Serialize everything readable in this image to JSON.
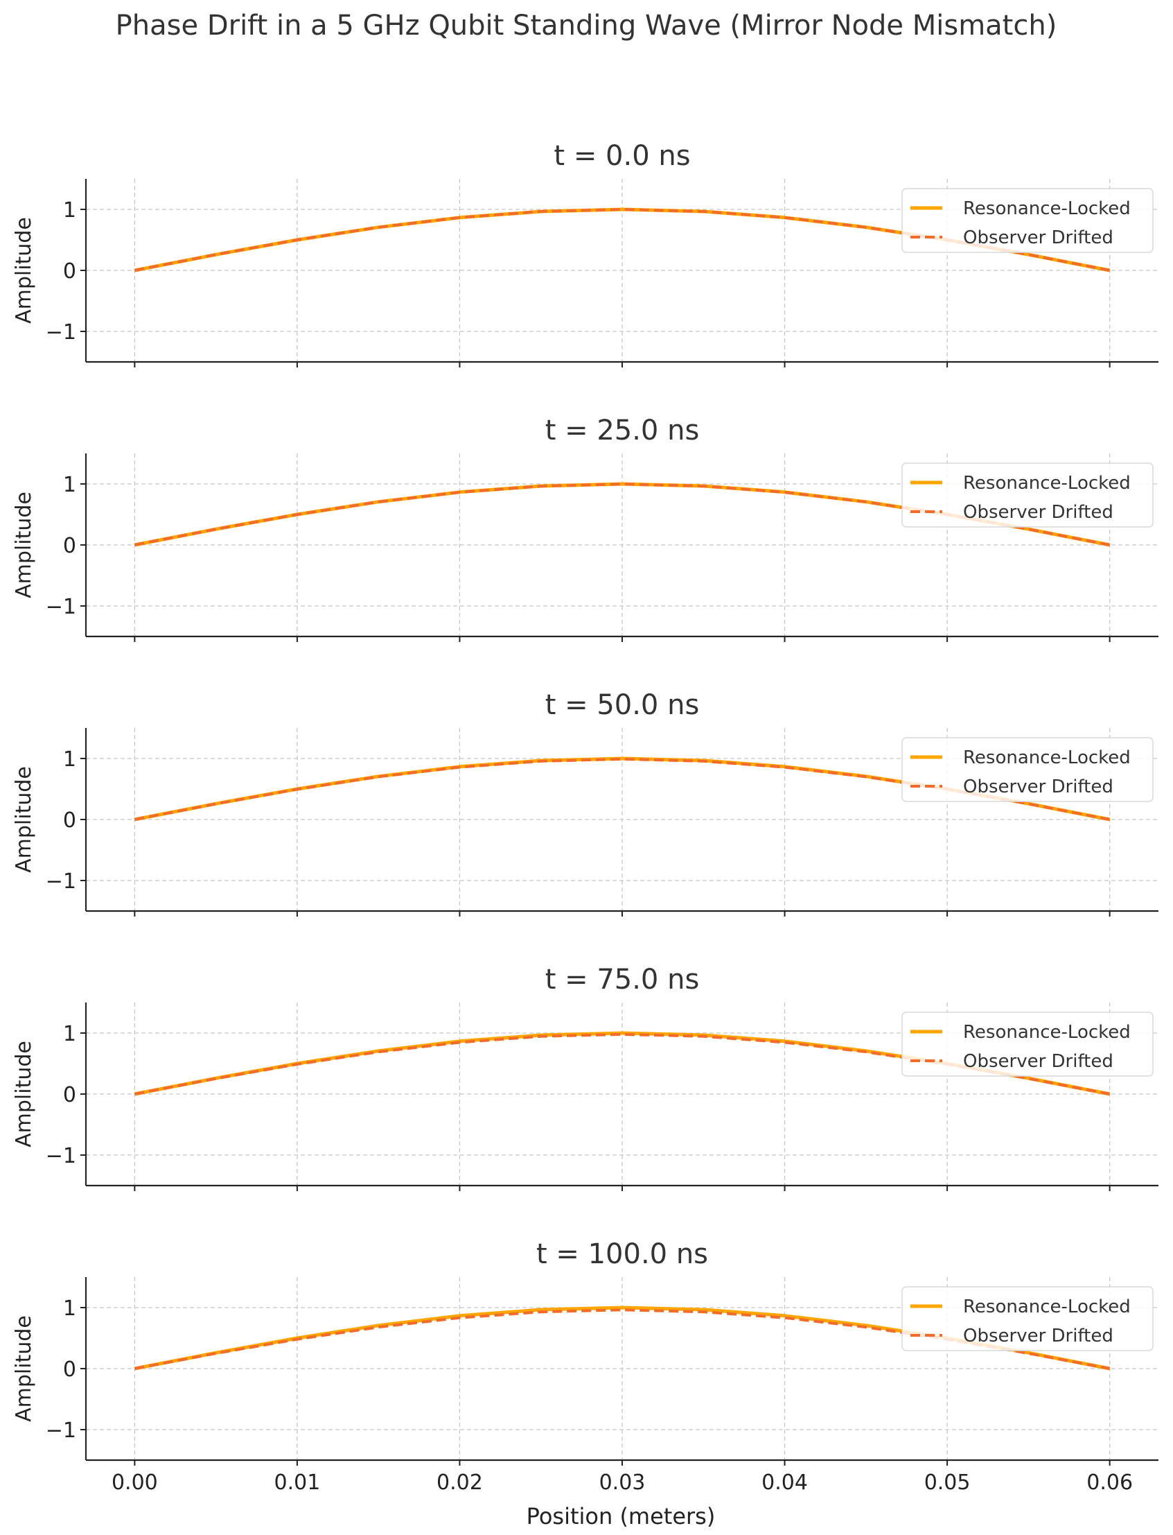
{
  "figure": {
    "suptitle": "Phase Drift in a 5 GHz Qubit Standing Wave (Mirror Node Mismatch)",
    "xlabel": "Position (meters)",
    "ylabel": "Amplitude"
  },
  "colors": {
    "locked": "#FFA500",
    "drifted": "#F26B2A",
    "grid": "#c8c8c8",
    "axis": "#222222"
  },
  "chart_data": [
    {
      "type": "line",
      "title": "t = 0.0 ns",
      "xlim": [
        -0.003,
        0.063
      ],
      "ylim": [
        -1.5,
        1.5
      ],
      "xticks": [
        0.0,
        0.01,
        0.02,
        0.03,
        0.04,
        0.05,
        0.06
      ],
      "xtick_labels": [
        "0.00",
        "0.01",
        "0.02",
        "0.03",
        "0.04",
        "0.05",
        "0.06"
      ],
      "yticks": [
        1,
        0,
        -1
      ],
      "ytick_labels": [
        "1",
        "0",
        "−1"
      ],
      "grid": true,
      "legend": "upper right",
      "x": [
        0.0,
        0.005,
        0.01,
        0.015,
        0.02,
        0.025,
        0.03,
        0.035,
        0.04,
        0.045,
        0.05,
        0.055,
        0.06
      ],
      "series": [
        {
          "name": "Resonance-Locked",
          "style": "solid",
          "values": [
            0.0,
            0.259,
            0.5,
            0.707,
            0.866,
            0.966,
            1.0,
            0.966,
            0.866,
            0.707,
            0.5,
            0.259,
            0.0
          ]
        },
        {
          "name": "Observer Drifted",
          "style": "dashed",
          "values": [
            0.0,
            0.259,
            0.5,
            0.707,
            0.866,
            0.966,
            1.0,
            0.966,
            0.866,
            0.707,
            0.5,
            0.259,
            0.0
          ]
        }
      ]
    },
    {
      "type": "line",
      "title": "t = 25.0 ns",
      "xlim": [
        -0.003,
        0.063
      ],
      "ylim": [
        -1.5,
        1.5
      ],
      "xticks": [
        0.0,
        0.01,
        0.02,
        0.03,
        0.04,
        0.05,
        0.06
      ],
      "xtick_labels": [
        "0.00",
        "0.01",
        "0.02",
        "0.03",
        "0.04",
        "0.05",
        "0.06"
      ],
      "yticks": [
        1,
        0,
        -1
      ],
      "ytick_labels": [
        "1",
        "0",
        "−1"
      ],
      "grid": true,
      "legend": "upper right",
      "x": [
        0.0,
        0.005,
        0.01,
        0.015,
        0.02,
        0.025,
        0.03,
        0.035,
        0.04,
        0.045,
        0.05,
        0.055,
        0.06
      ],
      "series": [
        {
          "name": "Resonance-Locked",
          "style": "solid",
          "values": [
            0.0,
            0.259,
            0.5,
            0.707,
            0.866,
            0.966,
            1.0,
            0.966,
            0.866,
            0.707,
            0.5,
            0.259,
            0.0
          ]
        },
        {
          "name": "Observer Drifted",
          "style": "dashed",
          "values": [
            0.0,
            0.258,
            0.499,
            0.706,
            0.864,
            0.964,
            0.998,
            0.964,
            0.864,
            0.706,
            0.499,
            0.258,
            0.0
          ]
        }
      ]
    },
    {
      "type": "line",
      "title": "t = 50.0 ns",
      "xlim": [
        -0.003,
        0.063
      ],
      "ylim": [
        -1.5,
        1.5
      ],
      "xticks": [
        0.0,
        0.01,
        0.02,
        0.03,
        0.04,
        0.05,
        0.06
      ],
      "xtick_labels": [
        "0.00",
        "0.01",
        "0.02",
        "0.03",
        "0.04",
        "0.05",
        "0.06"
      ],
      "yticks": [
        1,
        0,
        -1
      ],
      "ytick_labels": [
        "1",
        "0",
        "−1"
      ],
      "grid": true,
      "legend": "upper right",
      "x": [
        0.0,
        0.005,
        0.01,
        0.015,
        0.02,
        0.025,
        0.03,
        0.035,
        0.04,
        0.045,
        0.05,
        0.055,
        0.06
      ],
      "series": [
        {
          "name": "Resonance-Locked",
          "style": "solid",
          "values": [
            0.0,
            0.259,
            0.5,
            0.707,
            0.866,
            0.966,
            1.0,
            0.966,
            0.866,
            0.707,
            0.5,
            0.259,
            0.0
          ]
        },
        {
          "name": "Observer Drifted",
          "style": "dashed",
          "values": [
            0.0,
            0.256,
            0.495,
            0.7,
            0.857,
            0.956,
            0.99,
            0.956,
            0.857,
            0.7,
            0.495,
            0.256,
            0.0
          ]
        }
      ]
    },
    {
      "type": "line",
      "title": "t = 75.0 ns",
      "xlim": [
        -0.003,
        0.063
      ],
      "ylim": [
        -1.5,
        1.5
      ],
      "xticks": [
        0.0,
        0.01,
        0.02,
        0.03,
        0.04,
        0.05,
        0.06
      ],
      "xtick_labels": [
        "0.00",
        "0.01",
        "0.02",
        "0.03",
        "0.04",
        "0.05",
        "0.06"
      ],
      "yticks": [
        1,
        0,
        -1
      ],
      "ytick_labels": [
        "1",
        "0",
        "−1"
      ],
      "grid": true,
      "legend": "upper right",
      "x": [
        0.0,
        0.005,
        0.01,
        0.015,
        0.02,
        0.025,
        0.03,
        0.035,
        0.04,
        0.045,
        0.05,
        0.055,
        0.06
      ],
      "series": [
        {
          "name": "Resonance-Locked",
          "style": "solid",
          "values": [
            0.0,
            0.259,
            0.5,
            0.707,
            0.866,
            0.966,
            1.0,
            0.966,
            0.866,
            0.707,
            0.5,
            0.259,
            0.0
          ]
        },
        {
          "name": "Observer Drifted",
          "style": "dashed",
          "values": [
            0.0,
            0.253,
            0.489,
            0.691,
            0.847,
            0.945,
            0.978,
            0.945,
            0.847,
            0.691,
            0.489,
            0.253,
            0.0
          ]
        }
      ]
    },
    {
      "type": "line",
      "title": "t = 100.0 ns",
      "xlim": [
        -0.003,
        0.063
      ],
      "ylim": [
        -1.5,
        1.5
      ],
      "xticks": [
        0.0,
        0.01,
        0.02,
        0.03,
        0.04,
        0.05,
        0.06
      ],
      "xtick_labels": [
        "0.00",
        "0.01",
        "0.02",
        "0.03",
        "0.04",
        "0.05",
        "0.06"
      ],
      "yticks": [
        1,
        0,
        -1
      ],
      "ytick_labels": [
        "1",
        "0",
        "−1"
      ],
      "grid": true,
      "legend": "upper right",
      "x": [
        0.0,
        0.005,
        0.01,
        0.015,
        0.02,
        0.025,
        0.03,
        0.035,
        0.04,
        0.045,
        0.05,
        0.055,
        0.06
      ],
      "series": [
        {
          "name": "Resonance-Locked",
          "style": "solid",
          "values": [
            0.0,
            0.259,
            0.5,
            0.707,
            0.866,
            0.966,
            1.0,
            0.966,
            0.866,
            0.707,
            0.5,
            0.259,
            0.0
          ]
        },
        {
          "name": "Observer Drifted",
          "style": "dashed",
          "values": [
            0.0,
            0.249,
            0.481,
            0.68,
            0.833,
            0.929,
            0.962,
            0.929,
            0.833,
            0.68,
            0.481,
            0.249,
            0.0
          ]
        }
      ]
    }
  ]
}
